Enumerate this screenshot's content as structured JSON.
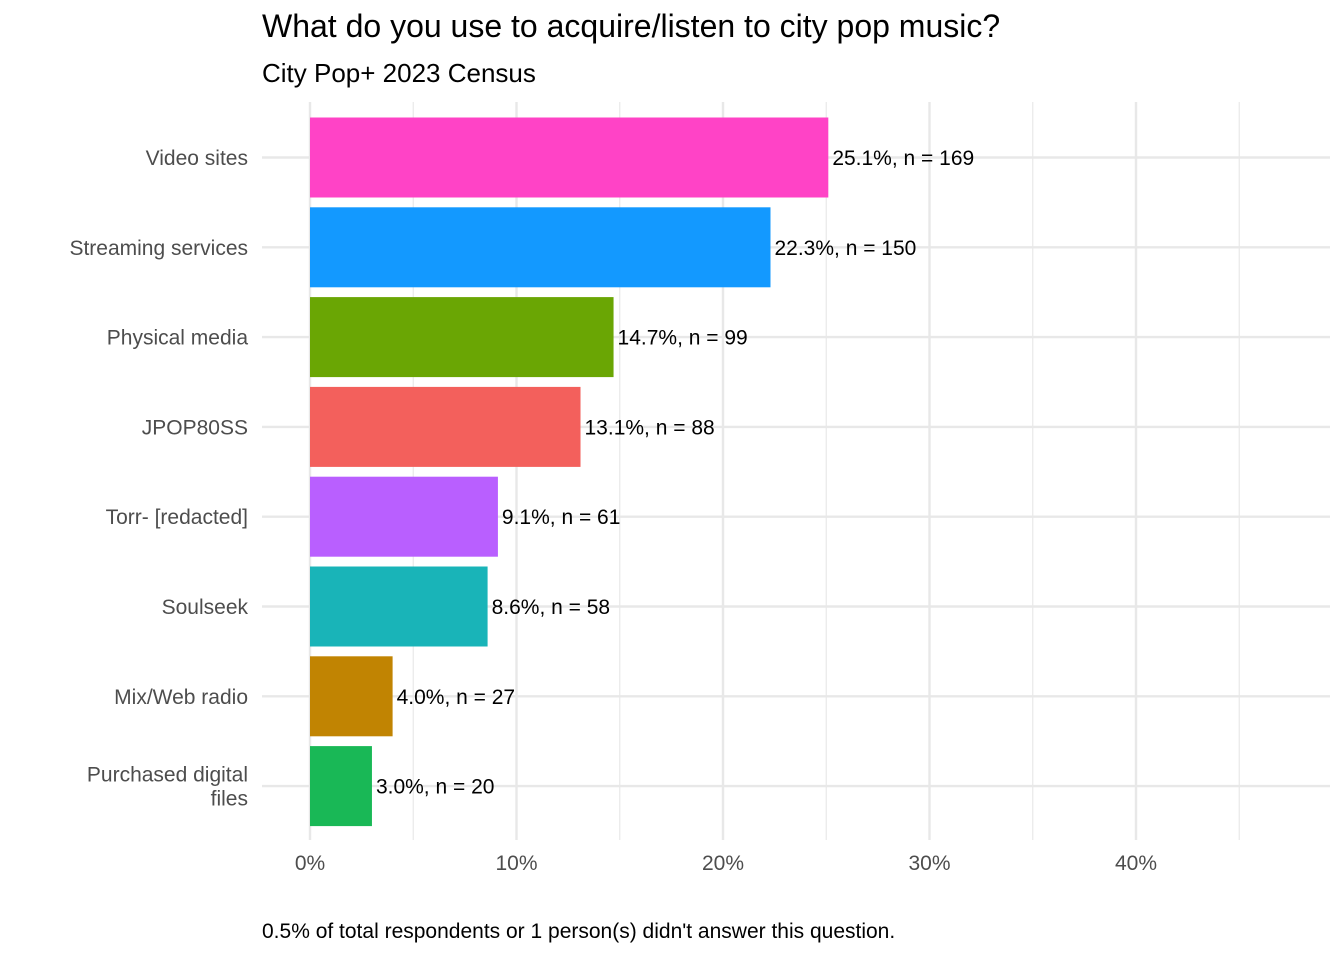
{
  "chart_data": {
    "type": "bar",
    "orientation": "horizontal",
    "title": "What do you use to acquire/listen to city pop music?",
    "subtitle": "City Pop+ 2023 Census",
    "caption": "0.5% of total respondents or 1 person(s) didn't answer this question.",
    "xlabel": "",
    "ylabel": "",
    "xlim": [
      0,
      0.49
    ],
    "xticks": [
      0,
      0.1,
      0.2,
      0.3,
      0.4
    ],
    "xtick_labels": [
      "0%",
      "10%",
      "20%",
      "30%",
      "40%"
    ],
    "grid": true,
    "legend": "none",
    "categories": [
      [
        "Video sites"
      ],
      [
        "Streaming services"
      ],
      [
        "Physical media"
      ],
      [
        "JPOP80SS"
      ],
      [
        "Torr- [redacted]"
      ],
      [
        "Soulseek"
      ],
      [
        "Mix/Web radio"
      ],
      [
        "Purchased digital",
        "files"
      ]
    ],
    "values": [
      0.251,
      0.223,
      0.147,
      0.131,
      0.091,
      0.086,
      0.04,
      0.03
    ],
    "counts": [
      169,
      150,
      99,
      88,
      61,
      58,
      27,
      20
    ],
    "data_labels": [
      "25.1%, n = 169",
      "22.3%, n = 150",
      "14.7%, n = 99",
      "13.1%, n = 88",
      "9.1%, n = 61",
      "8.6%, n = 58",
      "4.0%, n = 27",
      "3.0%, n = 20"
    ],
    "colors": [
      "#FF43C6",
      "#1399FF",
      "#6AA604",
      "#F3605C",
      "#B95FFF",
      "#19B4B8",
      "#C18402",
      "#19B856"
    ],
    "grid_color": "#E8E8E8",
    "axis_text_color": "#4D4D4D",
    "label_color": "#000000"
  }
}
